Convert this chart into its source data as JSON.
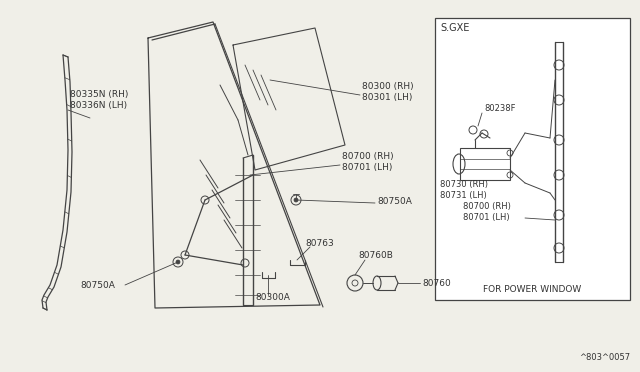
{
  "bg_color": "#f0efe8",
  "line_color": "#444444",
  "text_color": "#333333",
  "part_code": "^803^0057",
  "labels": {
    "80335N_RH": "80335N (RH)\n80336N (LH)",
    "80300_RH": "80300 (RH)\n80301 (LH)",
    "80700_RH": "80700 (RH)\n80701 (LH)",
    "80750A_top": "80750A",
    "80750A_bot": "80750A",
    "80763": "80763",
    "80300A": "80300A",
    "80760B": "80760B",
    "80760": "80760",
    "sgxe": "S.GXE",
    "80238F": "80238F",
    "80730_RH": "80730 (RH)\n80731 (LH)",
    "80700_pw": "80700 (RH)\n80701 (LH)",
    "for_pw": "FOR POWER WINDOW"
  }
}
